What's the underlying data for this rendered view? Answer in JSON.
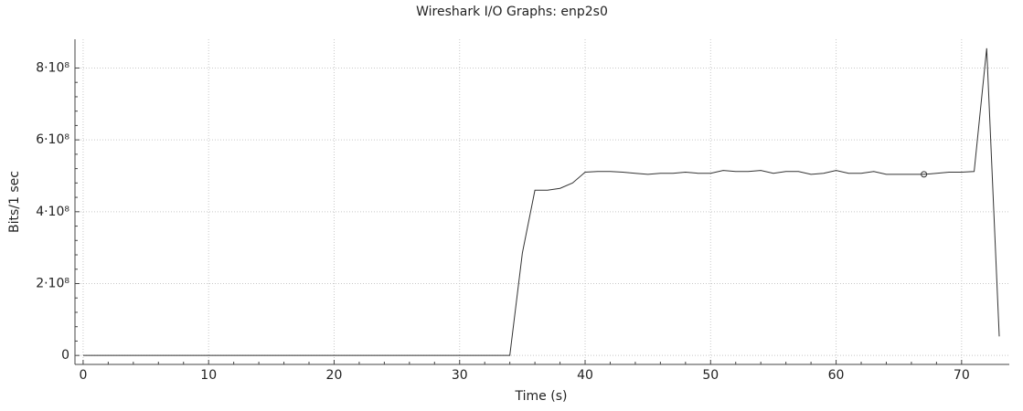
{
  "chart_data": {
    "type": "line",
    "title": "Wireshark I/O Graphs: enp2s0",
    "x_label": "Time (s)",
    "y_label": "Bits/1 sec",
    "x": [
      0,
      1,
      2,
      3,
      4,
      5,
      6,
      7,
      8,
      9,
      10,
      11,
      12,
      13,
      14,
      15,
      16,
      17,
      18,
      19,
      20,
      21,
      22,
      23,
      24,
      25,
      26,
      27,
      28,
      29,
      30,
      31,
      32,
      33,
      34,
      35,
      36,
      37,
      38,
      39,
      40,
      41,
      42,
      43,
      44,
      45,
      46,
      47,
      48,
      49,
      50,
      51,
      52,
      53,
      54,
      55,
      56,
      57,
      58,
      59,
      60,
      61,
      62,
      63,
      64,
      65,
      66,
      67,
      68,
      69,
      70,
      71,
      72,
      73
    ],
    "values": [
      0,
      0,
      0,
      0,
      0,
      0,
      0,
      0,
      0,
      0,
      0,
      0,
      0,
      0,
      0,
      0,
      0,
      0,
      0,
      0,
      0,
      0,
      0,
      0,
      0,
      0,
      0,
      0,
      0,
      0,
      0,
      0,
      0,
      0,
      0,
      285000000,
      460000000,
      460000000,
      465000000,
      480000000,
      510000000,
      512000000,
      512000000,
      510000000,
      507000000,
      504000000,
      507000000,
      507000000,
      510000000,
      507000000,
      507000000,
      515000000,
      512000000,
      512000000,
      515000000,
      507000000,
      512000000,
      512000000,
      504000000,
      507000000,
      515000000,
      507000000,
      507000000,
      512000000,
      504000000,
      504000000,
      504000000,
      504000000,
      507000000,
      510000000,
      510000000,
      512000000,
      855000000,
      53000000
    ],
    "color": "#333333",
    "selected_point": 67,
    "xlim": [
      -0.65,
      73.8
    ],
    "ylim": [
      -25000000,
      880000000
    ],
    "xticks": [
      0,
      10,
      20,
      30,
      40,
      50,
      60,
      70
    ],
    "yticks": [
      0,
      {
        "value": 200000000,
        "label": "2·10⁸"
      },
      {
        "value": 400000000,
        "label": "4·10⁸"
      },
      {
        "value": 600000000,
        "label": "6·10⁸"
      },
      {
        "value": 800000000,
        "label": "8·10⁸"
      }
    ],
    "grid": true
  }
}
